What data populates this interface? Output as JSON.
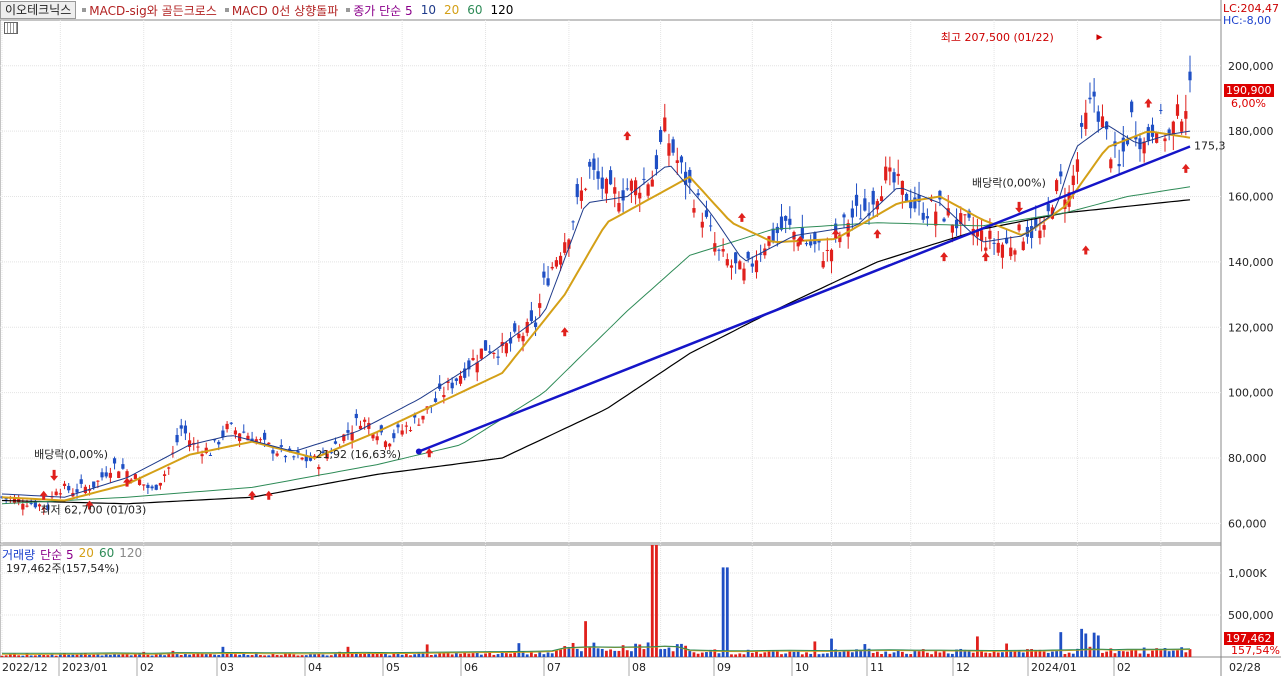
{
  "header": {
    "stock_name": "이오테크닉스",
    "indicators": [
      "MACD-sig와 골든크로스",
      "MACD 0선 상향돌파",
      "종가 단순 5"
    ],
    "ma_periods": [
      "10",
      "20",
      "60",
      "120"
    ],
    "ma_colors": [
      "#1e3a8a",
      "#d4a017",
      "#2e8b57",
      "#000000"
    ],
    "lc": "LC:204,47",
    "hc": "HC:-8,00"
  },
  "volume_header": {
    "title": "거래량",
    "ma_label": "단순 5",
    "periods": [
      "20",
      "60",
      "120"
    ],
    "summary": "197,462주(157,54%)"
  },
  "price_badge": {
    "value": "190,900",
    "pct": "6,00%"
  },
  "volume_badge": {
    "value": "197,462",
    "pct": "157,54%"
  },
  "trend_label": "175,3",
  "chart_data": {
    "type": "candlestick",
    "x_ticks": [
      "2022/12",
      "2023/01",
      "02",
      "03",
      "04",
      "05",
      "06",
      "07",
      "08",
      "09",
      "10",
      "11",
      "12",
      "2024/01",
      "02",
      "02/28"
    ],
    "y_ticks": [
      200000,
      180000,
      160000,
      140000,
      120000,
      100000,
      80000,
      60000
    ],
    "y_tick_labels": [
      "200,000",
      "180,000",
      "160,000",
      "140,000",
      "120,000",
      "100,000",
      "80,000",
      "60,000"
    ],
    "ylim": [
      54000,
      214000
    ],
    "volume_ticks": [
      "1,000K",
      "500,000"
    ],
    "volume_ylim": [
      0,
      1250000
    ],
    "price_path": [
      [
        0,
        68000
      ],
      [
        10,
        67000
      ],
      [
        22,
        65000
      ],
      [
        26,
        71000
      ],
      [
        35,
        70000
      ],
      [
        45,
        72000
      ],
      [
        53,
        78000
      ],
      [
        60,
        76000
      ],
      [
        72,
        70000
      ],
      [
        80,
        77000
      ],
      [
        86,
        89000
      ],
      [
        92,
        84000
      ],
      [
        100,
        82000
      ],
      [
        108,
        89000
      ],
      [
        116,
        88000
      ],
      [
        126,
        84000
      ],
      [
        140,
        80000
      ],
      [
        152,
        79000
      ],
      [
        160,
        84000
      ],
      [
        172,
        92000
      ],
      [
        186,
        86000
      ],
      [
        200,
        92000
      ],
      [
        216,
        103000
      ],
      [
        232,
        114000
      ],
      [
        240,
        113000
      ],
      [
        256,
        121000
      ],
      [
        260,
        133000
      ],
      [
        272,
        150000
      ],
      [
        282,
        168000
      ],
      [
        292,
        160000
      ],
      [
        302,
        163000
      ],
      [
        312,
        166000
      ],
      [
        318,
        180000
      ],
      [
        326,
        168000
      ],
      [
        336,
        155000
      ],
      [
        344,
        142000
      ],
      [
        356,
        136000
      ],
      [
        366,
        146000
      ],
      [
        376,
        151000
      ],
      [
        386,
        146000
      ],
      [
        396,
        142000
      ],
      [
        406,
        153000
      ],
      [
        414,
        156000
      ],
      [
        424,
        166000
      ],
      [
        432,
        162000
      ],
      [
        440,
        156000
      ],
      [
        450,
        156000
      ],
      [
        458,
        152000
      ],
      [
        466,
        150000
      ],
      [
        472,
        147000
      ],
      [
        482,
        145000
      ],
      [
        492,
        150000
      ],
      [
        500,
        148000
      ],
      [
        504,
        160000
      ],
      [
        508,
        164000
      ],
      [
        512,
        160000
      ],
      [
        520,
        183000
      ],
      [
        524,
        191000
      ],
      [
        530,
        178000
      ],
      [
        536,
        168000
      ],
      [
        542,
        184000
      ],
      [
        548,
        176000
      ],
      [
        554,
        184000
      ],
      [
        560,
        178000
      ],
      [
        566,
        187000
      ],
      [
        570,
        191000
      ]
    ],
    "ma10_path": [
      [
        0,
        69000
      ],
      [
        30,
        68000
      ],
      [
        60,
        74000
      ],
      [
        90,
        84000
      ],
      [
        110,
        87000
      ],
      [
        140,
        82000
      ],
      [
        170,
        88000
      ],
      [
        200,
        98000
      ],
      [
        230,
        110000
      ],
      [
        260,
        124000
      ],
      [
        280,
        158000
      ],
      [
        300,
        160000
      ],
      [
        320,
        170000
      ],
      [
        340,
        155000
      ],
      [
        356,
        140000
      ],
      [
        380,
        148000
      ],
      [
        410,
        151000
      ],
      [
        430,
        163000
      ],
      [
        450,
        158000
      ],
      [
        470,
        146000
      ],
      [
        490,
        148000
      ],
      [
        505,
        155000
      ],
      [
        515,
        175000
      ],
      [
        530,
        182000
      ],
      [
        545,
        176000
      ],
      [
        560,
        179000
      ],
      [
        570,
        180000
      ]
    ],
    "ma20_path": [
      [
        0,
        68000
      ],
      [
        30,
        67000
      ],
      [
        60,
        72000
      ],
      [
        90,
        81000
      ],
      [
        120,
        85000
      ],
      [
        150,
        80000
      ],
      [
        180,
        88000
      ],
      [
        210,
        97000
      ],
      [
        240,
        106000
      ],
      [
        270,
        130000
      ],
      [
        290,
        152000
      ],
      [
        310,
        159000
      ],
      [
        330,
        166000
      ],
      [
        350,
        152000
      ],
      [
        370,
        146000
      ],
      [
        400,
        147000
      ],
      [
        430,
        158000
      ],
      [
        450,
        160000
      ],
      [
        470,
        153000
      ],
      [
        490,
        148000
      ],
      [
        510,
        157000
      ],
      [
        530,
        175000
      ],
      [
        550,
        180000
      ],
      [
        570,
        178000
      ]
    ],
    "ma60_path": [
      [
        0,
        66000
      ],
      [
        60,
        68000
      ],
      [
        120,
        71000
      ],
      [
        180,
        78000
      ],
      [
        220,
        84000
      ],
      [
        260,
        100000
      ],
      [
        300,
        125000
      ],
      [
        330,
        142000
      ],
      [
        370,
        150000
      ],
      [
        420,
        152000
      ],
      [
        470,
        151000
      ],
      [
        510,
        155000
      ],
      [
        540,
        160000
      ],
      [
        570,
        163000
      ]
    ],
    "ma120_path": [
      [
        0,
        67000
      ],
      [
        60,
        66000
      ],
      [
        120,
        68000
      ],
      [
        180,
        75000
      ],
      [
        240,
        80000
      ],
      [
        290,
        95000
      ],
      [
        330,
        112000
      ],
      [
        370,
        125000
      ],
      [
        420,
        140000
      ],
      [
        470,
        150000
      ],
      [
        510,
        155000
      ],
      [
        540,
        157000
      ],
      [
        570,
        159000
      ]
    ],
    "trendline": [
      [
        200,
        82000
      ],
      [
        570,
        175300
      ]
    ],
    "buy_signals": [
      [
        20,
        70000
      ],
      [
        42,
        67000
      ],
      [
        60,
        74000
      ],
      [
        120,
        70000
      ],
      [
        128,
        70000
      ],
      [
        205,
        83000
      ],
      [
        270,
        120000
      ],
      [
        300,
        180000
      ],
      [
        355,
        155000
      ],
      [
        383,
        148000
      ],
      [
        400,
        150000
      ],
      [
        420,
        150000
      ],
      [
        452,
        143000
      ],
      [
        472,
        143000
      ],
      [
        520,
        145000
      ],
      [
        550,
        190000
      ],
      [
        568,
        170000
      ]
    ],
    "sell_signals": [
      [
        25,
        73000
      ],
      [
        488,
        155000
      ]
    ],
    "annotations": [
      {
        "text": "배당락(0,00%)",
        "x": 25,
        "y": 80000
      },
      {
        "text": "최저 62,700 (01/03)",
        "x": 28,
        "y": 63000
      },
      {
        "text": "21,92 (16,63%)",
        "x": 160,
        "y": 80000
      },
      {
        "text": "배당락(0,00%)",
        "x": 475,
        "y": 163000
      },
      {
        "text": "최고 207,500 (01/22)",
        "x": 460,
        "y": 207500
      }
    ]
  }
}
